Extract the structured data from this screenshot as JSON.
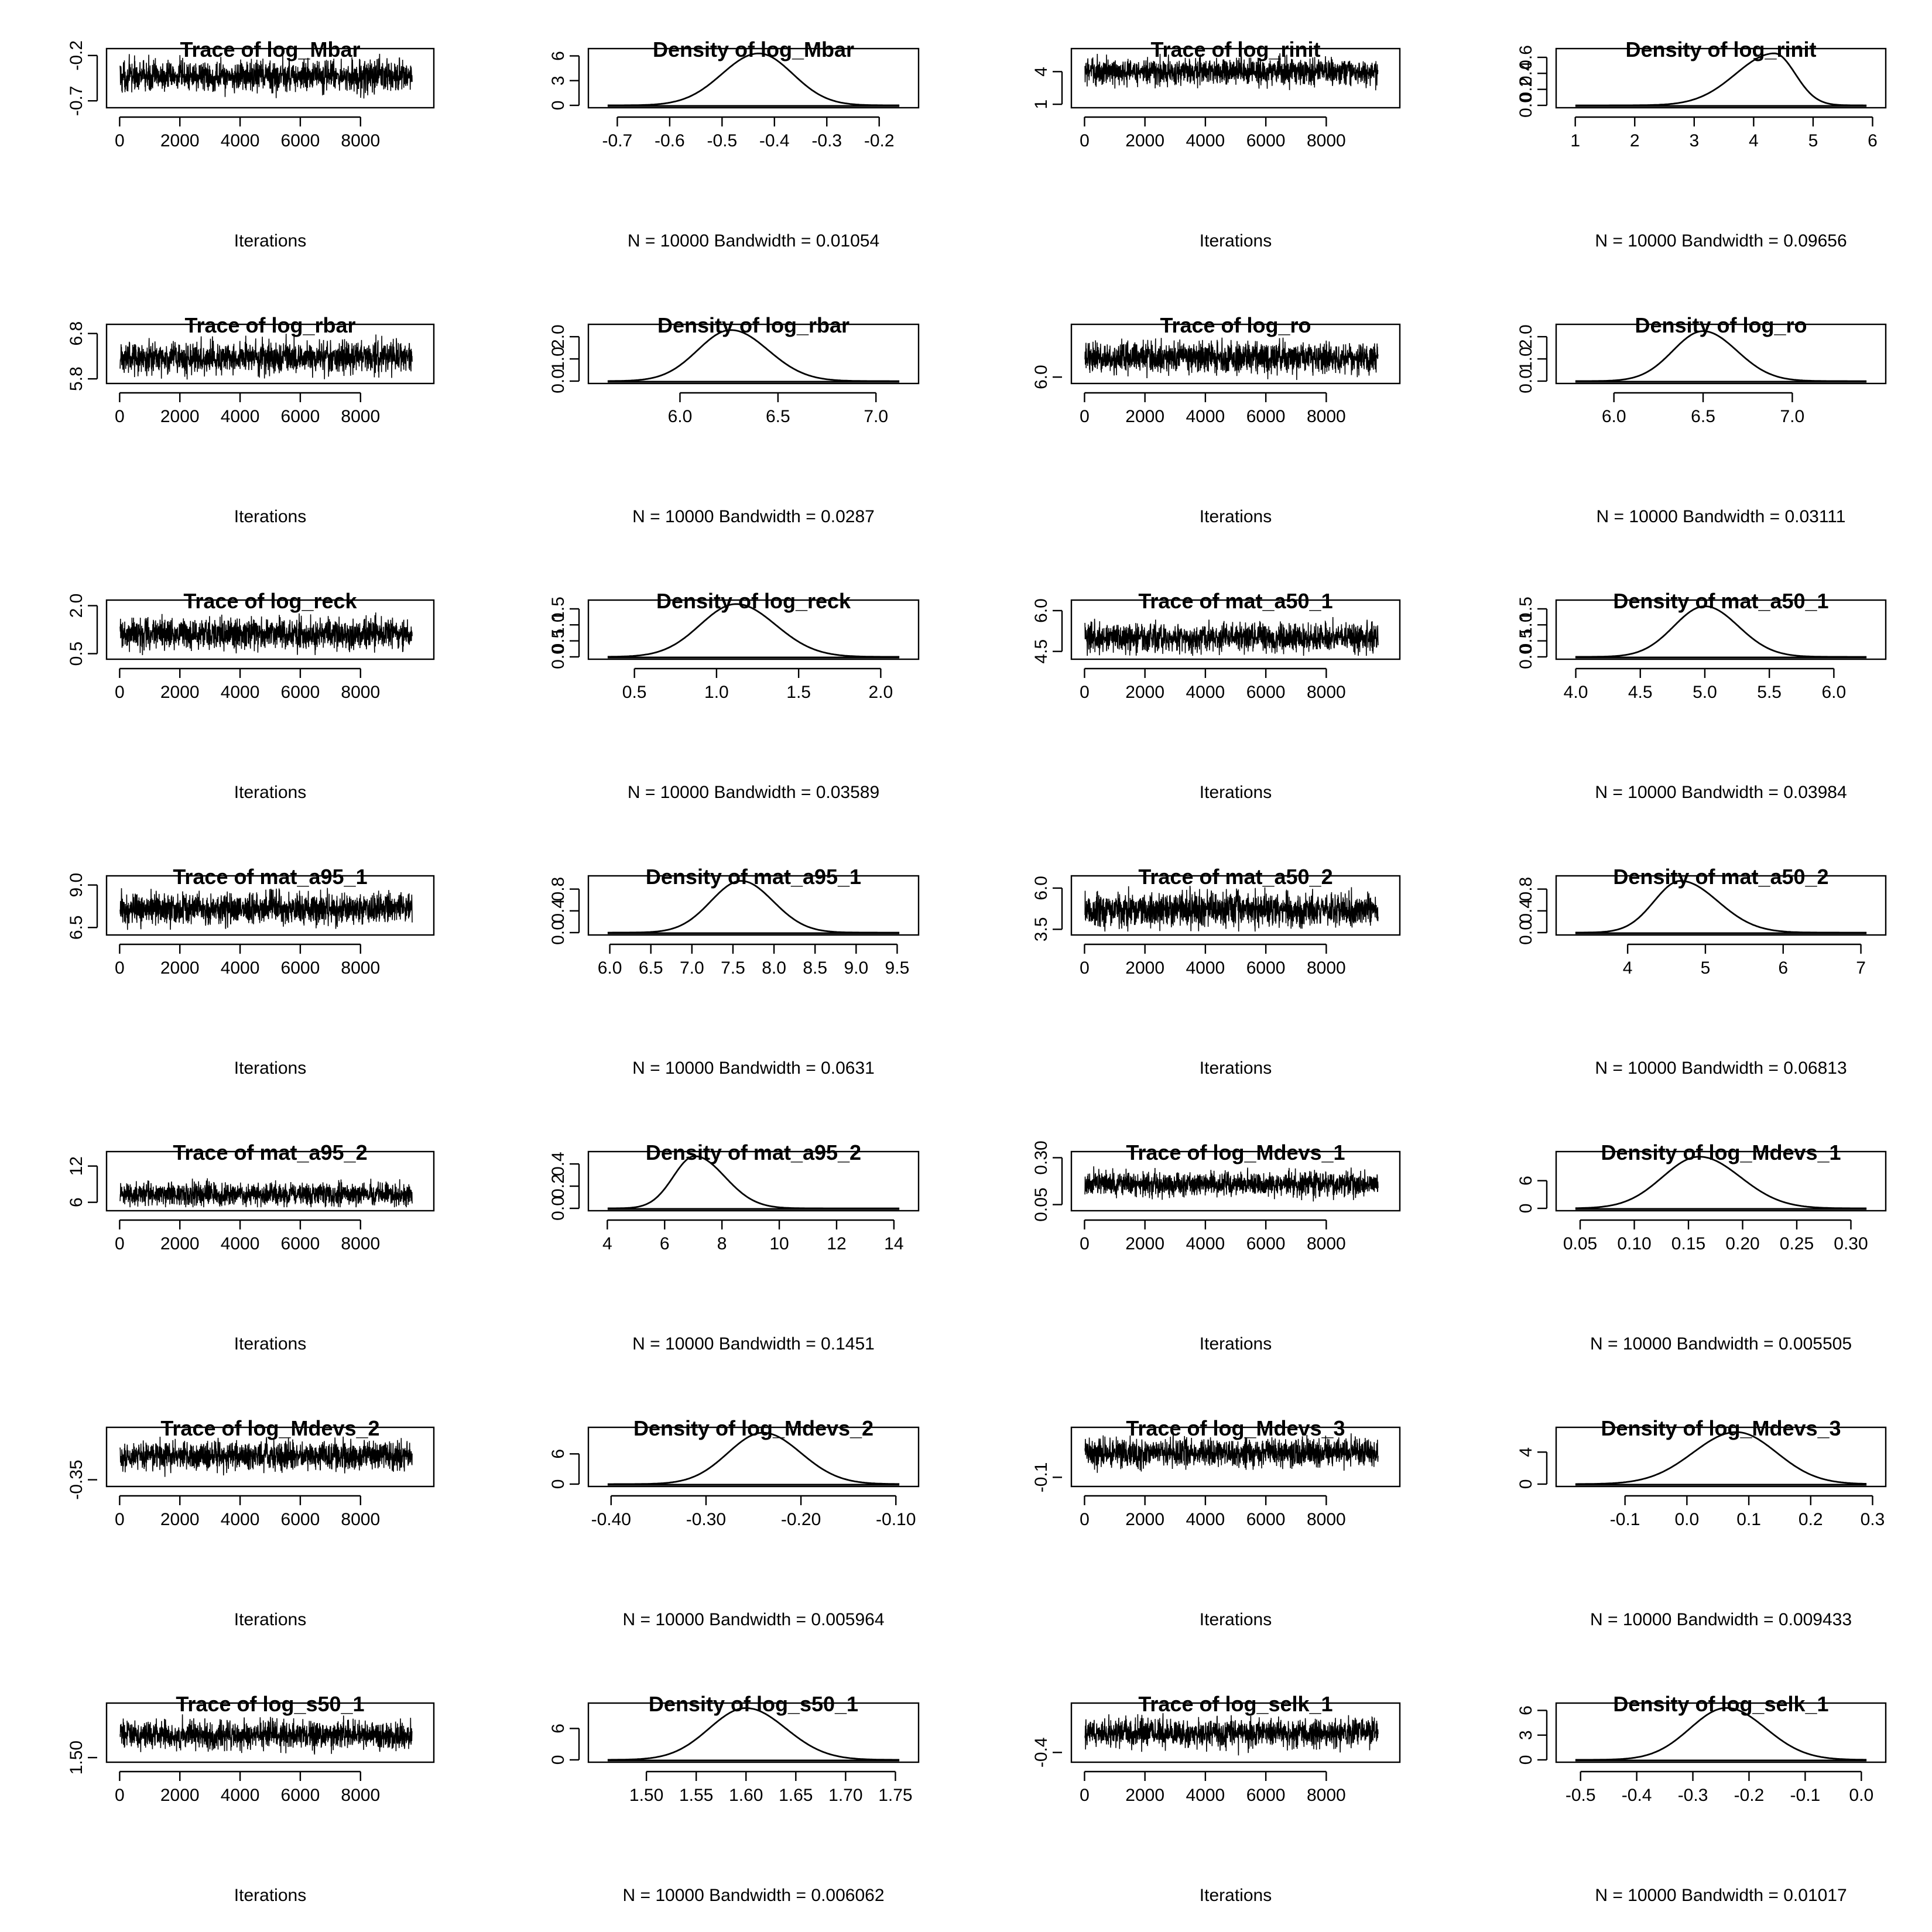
{
  "page": {
    "background": "#ffffff",
    "line_color": "#000000",
    "iterations_label": "Iterations",
    "trace_xticks": [
      0,
      2000,
      4000,
      6000,
      8000
    ]
  },
  "chart_data": [
    {
      "type": "line",
      "kind": "trace",
      "title": "Trace of log_Mbar",
      "xlabel": "Iterations",
      "xlim": [
        0,
        10000
      ],
      "yticks": [
        "-0.7",
        "-0.2"
      ],
      "yticks_at": [
        -0.7,
        -0.2
      ],
      "ylim": [
        -0.75,
        -0.15
      ],
      "mean": -0.43,
      "spread": 0.18
    },
    {
      "type": "line",
      "kind": "density",
      "title": "Density of log_Mbar",
      "xlabel": "N = 10000   Bandwidth = 0.01054",
      "xticks": [
        "-0.7",
        "-0.6",
        "-0.5",
        "-0.4",
        "-0.3",
        "-0.2"
      ],
      "xticks_at": [
        -0.7,
        -0.6,
        -0.5,
        -0.4,
        -0.3,
        -0.2
      ],
      "xlim": [
        -0.73,
        -0.15
      ],
      "yticks": [
        "0",
        "3",
        "6"
      ],
      "yticks_at": [
        0,
        3,
        6
      ],
      "ylim": [
        0,
        6.6
      ],
      "peak_x": -0.43,
      "peak_y": 6.3,
      "sd_left": 0.07,
      "sd_right": 0.065
    },
    {
      "type": "line",
      "kind": "trace",
      "title": "Trace of log_rinit",
      "xlabel": "Iterations",
      "xlim": [
        0,
        10000
      ],
      "yticks": [
        "1",
        "4"
      ],
      "yticks_at": [
        1,
        4
      ],
      "ylim": [
        0.9,
        5.9
      ],
      "mean": 4.0,
      "spread": 1.3
    },
    {
      "type": "line",
      "kind": "density",
      "title": "Density of log_rinit",
      "xlabel": "N = 10000   Bandwidth = 0.09656",
      "xticks": [
        "1",
        "2",
        "3",
        "4",
        "5",
        "6"
      ],
      "xticks_at": [
        1,
        2,
        3,
        4,
        5,
        6
      ],
      "xlim": [
        0.9,
        6.0
      ],
      "yticks": [
        "0.0",
        "0.2",
        "0.4",
        "0.6"
      ],
      "yticks_at": [
        0,
        0.2,
        0.4,
        0.6
      ],
      "ylim": [
        0,
        0.68
      ],
      "peak_x": 4.35,
      "peak_y": 0.65,
      "sd_left": 0.65,
      "sd_right": 0.35
    },
    {
      "type": "line",
      "kind": "trace",
      "title": "Trace of log_rbar",
      "xlabel": "Iterations",
      "xlim": [
        0,
        10000
      ],
      "yticks": [
        "5.8",
        "6.8"
      ],
      "yticks_at": [
        5.8,
        6.8
      ],
      "ylim": [
        5.75,
        6.95
      ],
      "mean": 6.27,
      "spread": 0.38
    },
    {
      "type": "line",
      "kind": "density",
      "title": "Density of log_rbar",
      "xlabel": "N = 10000   Bandwidth = 0.0287",
      "xticks": [
        "6.0",
        "6.5",
        "7.0"
      ],
      "xticks_at": [
        6.0,
        6.5,
        7.0
      ],
      "xlim": [
        5.6,
        7.15
      ],
      "yticks": [
        "0.0",
        "1.0",
        "2.0"
      ],
      "yticks_at": [
        0,
        1,
        2
      ],
      "ylim": [
        0,
        2.45
      ],
      "peak_x": 6.26,
      "peak_y": 2.3,
      "sd_left": 0.17,
      "sd_right": 0.19
    },
    {
      "type": "line",
      "kind": "trace",
      "title": "Trace of log_ro",
      "xlabel": "Iterations",
      "xlim": [
        0,
        10000
      ],
      "yticks": [
        "6.0"
      ],
      "yticks_at": [
        6.0
      ],
      "ylim": [
        5.9,
        7.25
      ],
      "mean": 6.48,
      "spread": 0.4
    },
    {
      "type": "line",
      "kind": "density",
      "title": "Density of log_ro",
      "xlabel": "N = 10000   Bandwidth = 0.03111",
      "xticks": [
        "6.0",
        "6.5",
        "7.0"
      ],
      "xticks_at": [
        6.0,
        6.5,
        7.0
      ],
      "xlim": [
        5.75,
        7.45
      ],
      "yticks": [
        "0.0",
        "1.0",
        "2.0"
      ],
      "yticks_at": [
        0,
        1,
        2
      ],
      "ylim": [
        0,
        2.45
      ],
      "peak_x": 6.5,
      "peak_y": 2.25,
      "sd_left": 0.17,
      "sd_right": 0.19
    },
    {
      "type": "line",
      "kind": "trace",
      "title": "Trace of log_reck",
      "xlabel": "Iterations",
      "xlim": [
        0,
        10000
      ],
      "yticks": [
        "0.5",
        "2.0"
      ],
      "yticks_at": [
        0.5,
        2.0
      ],
      "ylim": [
        0.4,
        2.1
      ],
      "mean": 1.12,
      "spread": 0.5
    },
    {
      "type": "line",
      "kind": "density",
      "title": "Density of log_reck",
      "xlabel": "N = 10000   Bandwidth = 0.03589",
      "xticks": [
        "0.5",
        "1.0",
        "1.5",
        "2.0"
      ],
      "xticks_at": [
        0.5,
        1.0,
        1.5,
        2.0
      ],
      "xlim": [
        0.3,
        2.15
      ],
      "yticks": [
        "0.0",
        "0.5",
        "1.0",
        "1.5"
      ],
      "yticks_at": [
        0,
        0.5,
        1.0,
        1.5
      ],
      "ylim": [
        0,
        1.7
      ],
      "peak_x": 1.12,
      "peak_y": 1.65,
      "sd_left": 0.22,
      "sd_right": 0.24
    },
    {
      "type": "line",
      "kind": "trace",
      "title": "Trace of mat_a50_1",
      "xlabel": "Iterations",
      "xlim": [
        0,
        10000
      ],
      "yticks": [
        "4.5",
        "6.0"
      ],
      "yticks_at": [
        4.5,
        6.0
      ],
      "ylim": [
        4.3,
        6.3
      ],
      "mean": 5.0,
      "spread": 0.55
    },
    {
      "type": "line",
      "kind": "density",
      "title": "Density of mat_a50_1",
      "xlabel": "N = 10000   Bandwidth = 0.03984",
      "xticks": [
        "4.0",
        "4.5",
        "5.0",
        "5.5",
        "6.0"
      ],
      "xticks_at": [
        4.0,
        4.5,
        5.0,
        5.5,
        6.0
      ],
      "xlim": [
        3.95,
        6.3
      ],
      "yticks": [
        "0.0",
        "0.5",
        "1.0",
        "1.5"
      ],
      "yticks_at": [
        0,
        0.5,
        1.0,
        1.5
      ],
      "ylim": [
        0,
        1.7
      ],
      "peak_x": 5.0,
      "peak_y": 1.58,
      "sd_left": 0.24,
      "sd_right": 0.26
    },
    {
      "type": "line",
      "kind": "trace",
      "title": "Trace of mat_a95_1",
      "xlabel": "Iterations",
      "xlim": [
        0,
        10000
      ],
      "yticks": [
        "6.5",
        "9.0"
      ],
      "yticks_at": [
        6.5,
        9.0
      ],
      "ylim": [
        6.2,
        9.4
      ],
      "mean": 7.6,
      "spread": 0.95
    },
    {
      "type": "line",
      "kind": "density",
      "title": "Density of mat_a95_1",
      "xlabel": "N = 10000   Bandwidth = 0.0631",
      "xticks": [
        "6.0",
        "6.5",
        "7.0",
        "7.5",
        "8.0",
        "8.5",
        "9.0",
        "9.5"
      ],
      "xticks_at": [
        6.0,
        6.5,
        7.0,
        7.5,
        8.0,
        8.5,
        9.0,
        9.5
      ],
      "xlim": [
        5.9,
        9.6
      ],
      "yticks": [
        "0.0",
        "0.4",
        "0.8"
      ],
      "yticks_at": [
        0,
        0.4,
        0.8
      ],
      "ylim": [
        0,
        1.0
      ],
      "peak_x": 7.6,
      "peak_y": 0.95,
      "sd_left": 0.37,
      "sd_right": 0.39
    },
    {
      "type": "line",
      "kind": "trace",
      "title": "Trace of mat_a50_2",
      "xlabel": "Iterations",
      "xlim": [
        0,
        10000
      ],
      "yticks": [
        "3.5",
        "6.0"
      ],
      "yticks_at": [
        3.5,
        6.0
      ],
      "ylim": [
        3.3,
        6.6
      ],
      "mean": 4.7,
      "spread": 1.1
    },
    {
      "type": "line",
      "kind": "density",
      "title": "Density of mat_a50_2",
      "xlabel": "N = 10000   Bandwidth = 0.06813",
      "xticks": [
        "4",
        "5",
        "6",
        "7"
      ],
      "xticks_at": [
        4,
        5,
        6,
        7
      ],
      "xlim": [
        3.25,
        7.15
      ],
      "yticks": [
        "0.0",
        "0.4",
        "0.8"
      ],
      "yticks_at": [
        0,
        0.4,
        0.8
      ],
      "ylim": [
        0,
        1.0
      ],
      "peak_x": 4.68,
      "peak_y": 0.95,
      "sd_left": 0.34,
      "sd_right": 0.48
    },
    {
      "type": "line",
      "kind": "trace",
      "title": "Trace of mat_a95_2",
      "xlabel": "Iterations",
      "xlim": [
        0,
        10000
      ],
      "yticks": [
        "6",
        "12"
      ],
      "yticks_at": [
        6,
        12
      ],
      "ylim": [
        5.0,
        14.0
      ],
      "mean": 7.3,
      "spread": 2.0
    },
    {
      "type": "line",
      "kind": "density",
      "title": "Density of mat_a95_2",
      "xlabel": "N = 10000   Bandwidth = 0.1451",
      "xticks": [
        "4",
        "6",
        "8",
        "10",
        "12",
        "14"
      ],
      "xticks_at": [
        4,
        6,
        8,
        10,
        12,
        14
      ],
      "xlim": [
        3.8,
        14.4
      ],
      "yticks": [
        "0.0",
        "0.2",
        "0.4"
      ],
      "yticks_at": [
        0,
        0.2,
        0.4
      ],
      "ylim": [
        0,
        0.49
      ],
      "peak_x": 7.05,
      "peak_y": 0.47,
      "sd_left": 0.75,
      "sd_right": 1.05
    },
    {
      "type": "line",
      "kind": "trace",
      "title": "Trace of log_Mdevs_1",
      "xlabel": "Iterations",
      "xlim": [
        0,
        10000
      ],
      "yticks": [
        "0.05",
        "0.30"
      ],
      "yticks_at": [
        0.05,
        0.3
      ],
      "ylim": [
        0.03,
        0.32
      ],
      "mean": 0.16,
      "spread": 0.07
    },
    {
      "type": "line",
      "kind": "density",
      "title": "Density of log_Mdevs_1",
      "xlabel": "N = 10000   Bandwidth = 0.005505",
      "xticks": [
        "0.05",
        "0.10",
        "0.15",
        "0.20",
        "0.25",
        "0.30"
      ],
      "xticks_at": [
        0.05,
        0.1,
        0.15,
        0.2,
        0.25,
        0.3
      ],
      "xlim": [
        0.04,
        0.32
      ],
      "yticks": [
        "0",
        "6"
      ],
      "yticks_at": [
        0,
        6
      ],
      "ylim": [
        0,
        11.8
      ],
      "peak_x": 0.16,
      "peak_y": 11.2,
      "sd_left": 0.034,
      "sd_right": 0.038
    },
    {
      "type": "line",
      "kind": "trace",
      "title": "Trace of log_Mdevs_2",
      "xlabel": "Iterations",
      "xlim": [
        0,
        10000
      ],
      "yticks": [
        "-0.35"
      ],
      "yticks_at": [
        -0.35
      ],
      "ylim": [
        -0.37,
        -0.12
      ],
      "mean": -0.24,
      "spread": 0.07
    },
    {
      "type": "line",
      "kind": "density",
      "title": "Density of log_Mdevs_2",
      "xlabel": "N = 10000   Bandwidth = 0.005964",
      "xticks": [
        "-0.40",
        "-0.30",
        "-0.20",
        "-0.10"
      ],
      "xticks_at": [
        -0.4,
        -0.3,
        -0.2,
        -0.1
      ],
      "xlim": [
        -0.41,
        -0.09
      ],
      "yticks": [
        "0",
        "6"
      ],
      "yticks_at": [
        0,
        6
      ],
      "ylim": [
        0,
        10.8
      ],
      "peak_x": -0.24,
      "peak_y": 10.2,
      "sd_left": 0.037,
      "sd_right": 0.04
    },
    {
      "type": "line",
      "kind": "trace",
      "title": "Trace of log_Mdevs_3",
      "xlabel": "Iterations",
      "xlim": [
        0,
        10000
      ],
      "yticks": [
        "-0.1"
      ],
      "yticks_at": [
        -0.1
      ],
      "ylim": [
        -0.15,
        0.25
      ],
      "mean": 0.08,
      "spread": 0.11
    },
    {
      "type": "line",
      "kind": "density",
      "title": "Density of log_Mdevs_3",
      "xlabel": "N = 10000   Bandwidth = 0.009433",
      "xticks": [
        "-0.1",
        "0.0",
        "0.1",
        "0.2",
        "0.3"
      ],
      "xticks_at": [
        -0.1,
        0.0,
        0.1,
        0.2,
        0.3
      ],
      "xlim": [
        -0.19,
        0.3
      ],
      "yticks": [
        "0",
        "4"
      ],
      "yticks_at": [
        0,
        4
      ],
      "ylim": [
        0,
        6.8
      ],
      "peak_x": 0.08,
      "peak_y": 6.5,
      "sd_left": 0.07,
      "sd_right": 0.065
    },
    {
      "type": "line",
      "kind": "trace",
      "title": "Trace of log_s50_1",
      "xlabel": "Iterations",
      "xlim": [
        0,
        10000
      ],
      "yticks": [
        "1.50"
      ],
      "yticks_at": [
        1.5
      ],
      "ylim": [
        1.49,
        1.73
      ],
      "mean": 1.6,
      "spread": 0.065
    },
    {
      "type": "line",
      "kind": "density",
      "title": "Density of log_s50_1",
      "xlabel": "N = 10000   Bandwidth = 0.006062",
      "xticks": [
        "1.50",
        "1.55",
        "1.60",
        "1.65",
        "1.70",
        "1.75"
      ],
      "xticks_at": [
        1.5,
        1.55,
        1.6,
        1.65,
        1.7,
        1.75
      ],
      "xlim": [
        1.455,
        1.76
      ],
      "yticks": [
        "0",
        "6"
      ],
      "yticks_at": [
        0,
        6
      ],
      "ylim": [
        0,
        10.4
      ],
      "peak_x": 1.6,
      "peak_y": 9.9,
      "sd_left": 0.037,
      "sd_right": 0.04
    },
    {
      "type": "line",
      "kind": "trace",
      "title": "Trace of log_selk_1",
      "xlabel": "Iterations",
      "xlim": [
        0,
        10000
      ],
      "yticks": [
        "-0.4"
      ],
      "yticks_at": [
        -0.4
      ],
      "ylim": [
        -0.46,
        -0.02
      ],
      "mean": -0.24,
      "spread": 0.12
    },
    {
      "type": "line",
      "kind": "density",
      "title": "Density of log_selk_1",
      "xlabel": "N = 10000   Bandwidth = 0.01017",
      "xticks": [
        "-0.5",
        "-0.4",
        "-0.3",
        "-0.2",
        "-0.1",
        "0.0"
      ],
      "xticks_at": [
        -0.5,
        -0.4,
        -0.3,
        -0.2,
        -0.1,
        0.0
      ],
      "xlim": [
        -0.52,
        0.02
      ],
      "yticks": [
        "0",
        "3",
        "6"
      ],
      "yticks_at": [
        0,
        3,
        6
      ],
      "ylim": [
        0,
        6.6
      ],
      "peak_x": -0.24,
      "peak_y": 6.3,
      "sd_left": 0.065,
      "sd_right": 0.07
    }
  ]
}
